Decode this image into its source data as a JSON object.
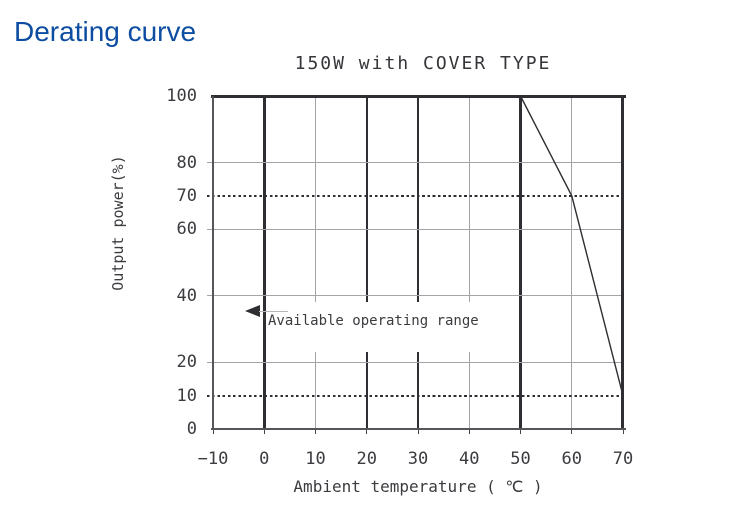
{
  "page": {
    "title": "Derating curve",
    "title_color": "#0c4da2"
  },
  "chart": {
    "title": "150W with COVER TYPE",
    "x_axis": {
      "label": "Ambient temperature ( ℃ )",
      "ticks": [
        "-10",
        "0",
        "10",
        "20",
        "30",
        "40",
        "50",
        "60",
        "70"
      ]
    },
    "y_axis": {
      "label": "Output power(%)",
      "ticks": [
        "100",
        "80",
        "70",
        "60",
        "40",
        "20",
        "10",
        "0"
      ]
    },
    "annotation": {
      "text": "Available operating range"
    }
  },
  "chart_data": {
    "type": "line",
    "title": "150W with COVER TYPE",
    "xlabel": "Ambient temperature ( ℃ )",
    "ylabel": "Output power(%)",
    "xlim": [
      -10,
      70
    ],
    "ylim": [
      0,
      100
    ],
    "grid": "on",
    "legend": "none",
    "series": [
      {
        "name": "derating-curve",
        "points": [
          [
            -10,
            100
          ],
          [
            50,
            100
          ],
          [
            60,
            70
          ],
          [
            70,
            10
          ]
        ]
      }
    ],
    "reference_lines": {
      "dotted_horizontal_y": [
        70,
        10
      ],
      "thin_horizontal_y": [
        80,
        60,
        40,
        20
      ],
      "thick_vertical_x": [
        0,
        20,
        30,
        50
      ],
      "thin_vertical_x": [
        10,
        40,
        60
      ]
    },
    "annotations": [
      {
        "text": "Available operating range",
        "arrow_direction": "left",
        "x": 0,
        "y": 36
      }
    ],
    "colors": {
      "line": "#2e2e33",
      "grid_thin": "#a3a3a8",
      "axis": "#55555a",
      "text": "#3b3b40"
    }
  }
}
